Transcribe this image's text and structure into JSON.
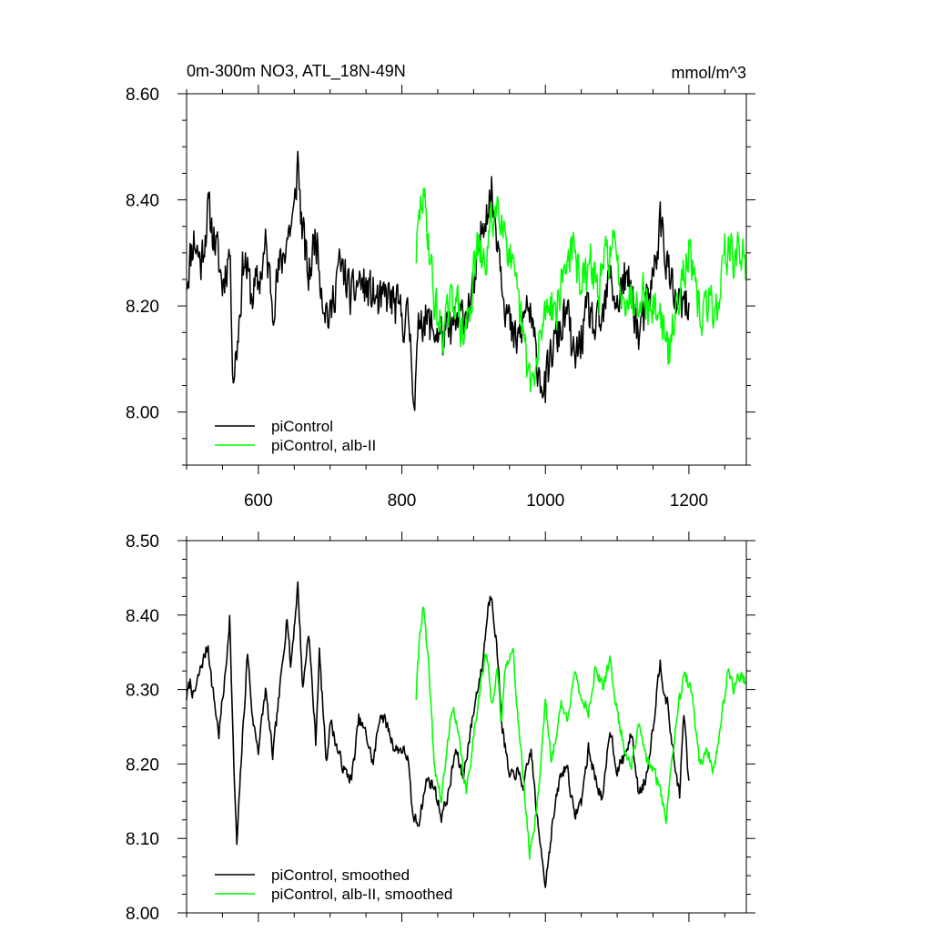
{
  "chart_data": [
    {
      "type": "line",
      "title": "0m-300m NO3, ATL_18N-49N",
      "units": "mmol/m^3",
      "xlim": [
        500,
        1280
      ],
      "ylim": [
        7.9,
        8.6
      ],
      "x_ticks": [
        600,
        800,
        1000,
        1200
      ],
      "x_tick_labels": [
        "600",
        "800",
        "1000",
        "1200"
      ],
      "y_ticks": [
        8.0,
        8.2,
        8.4,
        8.6
      ],
      "y_tick_labels": [
        "8.00",
        "8.20",
        "8.40",
        "8.60"
      ],
      "legend_position": "bottom-left",
      "series": [
        {
          "name": "piControl",
          "color": "#000000",
          "x_start": 500,
          "x_end": 1200,
          "anchors": [
            [
              500,
              8.25
            ],
            [
              510,
              8.33
            ],
            [
              520,
              8.28
            ],
            [
              530,
              8.38
            ],
            [
              540,
              8.32
            ],
            [
              550,
              8.24
            ],
            [
              560,
              8.31
            ],
            [
              565,
              8.07
            ],
            [
              570,
              8.12
            ],
            [
              580,
              8.3
            ],
            [
              590,
              8.22
            ],
            [
              600,
              8.24
            ],
            [
              610,
              8.31
            ],
            [
              620,
              8.21
            ],
            [
              630,
              8.27
            ],
            [
              640,
              8.33
            ],
            [
              650,
              8.37
            ],
            [
              655,
              8.48
            ],
            [
              660,
              8.36
            ],
            [
              670,
              8.25
            ],
            [
              680,
              8.34
            ],
            [
              690,
              8.22
            ],
            [
              700,
              8.17
            ],
            [
              710,
              8.27
            ],
            [
              720,
              8.26
            ],
            [
              730,
              8.21
            ],
            [
              740,
              8.25
            ],
            [
              750,
              8.23
            ],
            [
              760,
              8.22
            ],
            [
              770,
              8.2
            ],
            [
              780,
              8.22
            ],
            [
              790,
              8.2
            ],
            [
              800,
              8.18
            ],
            [
              810,
              8.17
            ],
            [
              818,
              8.02
            ],
            [
              825,
              8.19
            ],
            [
              840,
              8.16
            ],
            [
              860,
              8.14
            ],
            [
              880,
              8.17
            ],
            [
              900,
              8.22
            ],
            [
              915,
              8.38
            ],
            [
              925,
              8.41
            ],
            [
              935,
              8.32
            ],
            [
              945,
              8.2
            ],
            [
              955,
              8.13
            ],
            [
              965,
              8.14
            ],
            [
              975,
              8.21
            ],
            [
              985,
              8.12
            ],
            [
              995,
              8.06
            ],
            [
              1000,
              8.04
            ],
            [
              1010,
              8.12
            ],
            [
              1020,
              8.15
            ],
            [
              1030,
              8.19
            ],
            [
              1040,
              8.09
            ],
            [
              1050,
              8.14
            ],
            [
              1060,
              8.19
            ],
            [
              1070,
              8.15
            ],
            [
              1080,
              8.17
            ],
            [
              1090,
              8.26
            ],
            [
              1100,
              8.2
            ],
            [
              1110,
              8.25
            ],
            [
              1120,
              8.23
            ],
            [
              1130,
              8.14
            ],
            [
              1140,
              8.19
            ],
            [
              1150,
              8.25
            ],
            [
              1160,
              8.36
            ],
            [
              1170,
              8.28
            ],
            [
              1180,
              8.2
            ],
            [
              1190,
              8.2
            ],
            [
              1200,
              8.19
            ]
          ],
          "noise": 0.06,
          "seed": 11
        },
        {
          "name": "piControl, alb-II",
          "color": "#00ff00",
          "x_start": 820,
          "x_end": 1280,
          "anchors": [
            [
              820,
              8.3
            ],
            [
              828,
              8.41
            ],
            [
              835,
              8.36
            ],
            [
              845,
              8.21
            ],
            [
              855,
              8.15
            ],
            [
              865,
              8.18
            ],
            [
              875,
              8.23
            ],
            [
              885,
              8.13
            ],
            [
              895,
              8.2
            ],
            [
              905,
              8.31
            ],
            [
              915,
              8.27
            ],
            [
              925,
              8.36
            ],
            [
              935,
              8.4
            ],
            [
              945,
              8.34
            ],
            [
              955,
              8.25
            ],
            [
              965,
              8.18
            ],
            [
              975,
              8.08
            ],
            [
              985,
              8.05
            ],
            [
              995,
              8.16
            ],
            [
              1005,
              8.22
            ],
            [
              1015,
              8.19
            ],
            [
              1025,
              8.26
            ],
            [
              1035,
              8.31
            ],
            [
              1045,
              8.27
            ],
            [
              1055,
              8.24
            ],
            [
              1065,
              8.28
            ],
            [
              1075,
              8.22
            ],
            [
              1085,
              8.3
            ],
            [
              1095,
              8.31
            ],
            [
              1105,
              8.24
            ],
            [
              1115,
              8.22
            ],
            [
              1125,
              8.21
            ],
            [
              1135,
              8.24
            ],
            [
              1145,
              8.19
            ],
            [
              1155,
              8.2
            ],
            [
              1165,
              8.16
            ],
            [
              1170,
              8.1
            ],
            [
              1180,
              8.17
            ],
            [
              1190,
              8.27
            ],
            [
              1200,
              8.3
            ],
            [
              1210,
              8.21
            ],
            [
              1220,
              8.18
            ],
            [
              1230,
              8.21
            ],
            [
              1240,
              8.19
            ],
            [
              1250,
              8.31
            ],
            [
              1260,
              8.29
            ],
            [
              1270,
              8.3
            ],
            [
              1280,
              8.28
            ]
          ],
          "noise": 0.06,
          "seed": 29
        }
      ]
    },
    {
      "type": "line",
      "title": "",
      "xlim": [
        500,
        1280
      ],
      "ylim": [
        8.0,
        8.5
      ],
      "x_ticks": [
        600,
        800,
        1000,
        1200
      ],
      "y_ticks": [
        8.0,
        8.1,
        8.2,
        8.3,
        8.4,
        8.5
      ],
      "y_tick_labels": [
        "8.00",
        "8.10",
        "8.20",
        "8.30",
        "8.40",
        "8.50"
      ],
      "legend_position": "bottom-left",
      "series": [
        {
          "name": "piControl, smoothed",
          "color": "#000000",
          "x_start": 500,
          "x_end": 1200,
          "anchors": [
            [
              500,
              8.29
            ],
            [
              505,
              8.31
            ],
            [
              510,
              8.29
            ],
            [
              520,
              8.33
            ],
            [
              530,
              8.36
            ],
            [
              535,
              8.31
            ],
            [
              545,
              8.24
            ],
            [
              555,
              8.33
            ],
            [
              560,
              8.4
            ],
            [
              565,
              8.22
            ],
            [
              570,
              8.09
            ],
            [
              577,
              8.22
            ],
            [
              585,
              8.35
            ],
            [
              592,
              8.26
            ],
            [
              600,
              8.22
            ],
            [
              610,
              8.3
            ],
            [
              620,
              8.21
            ],
            [
              630,
              8.3
            ],
            [
              640,
              8.4
            ],
            [
              645,
              8.33
            ],
            [
              655,
              8.44
            ],
            [
              662,
              8.3
            ],
            [
              670,
              8.38
            ],
            [
              680,
              8.23
            ],
            [
              685,
              8.35
            ],
            [
              695,
              8.2
            ],
            [
              700,
              8.26
            ],
            [
              710,
              8.22
            ],
            [
              720,
              8.19
            ],
            [
              730,
              8.18
            ],
            [
              740,
              8.26
            ],
            [
              750,
              8.24
            ],
            [
              760,
              8.2
            ],
            [
              770,
              8.27
            ],
            [
              780,
              8.25
            ],
            [
              790,
              8.22
            ],
            [
              800,
              8.22
            ],
            [
              808,
              8.21
            ],
            [
              815,
              8.13
            ],
            [
              823,
              8.12
            ],
            [
              835,
              8.18
            ],
            [
              845,
              8.17
            ],
            [
              855,
              8.13
            ],
            [
              865,
              8.16
            ],
            [
              875,
              8.22
            ],
            [
              885,
              8.18
            ],
            [
              895,
              8.24
            ],
            [
              905,
              8.3
            ],
            [
              912,
              8.33
            ],
            [
              920,
              8.41
            ],
            [
              925,
              8.43
            ],
            [
              932,
              8.36
            ],
            [
              940,
              8.25
            ],
            [
              950,
              8.18
            ],
            [
              960,
              8.19
            ],
            [
              970,
              8.17
            ],
            [
              980,
              8.22
            ],
            [
              990,
              8.11
            ],
            [
              995,
              8.08
            ],
            [
              1000,
              8.04
            ],
            [
              1010,
              8.12
            ],
            [
              1020,
              8.18
            ],
            [
              1030,
              8.2
            ],
            [
              1040,
              8.13
            ],
            [
              1050,
              8.15
            ],
            [
              1060,
              8.22
            ],
            [
              1070,
              8.18
            ],
            [
              1080,
              8.15
            ],
            [
              1090,
              8.25
            ],
            [
              1100,
              8.19
            ],
            [
              1110,
              8.21
            ],
            [
              1120,
              8.24
            ],
            [
              1130,
              8.16
            ],
            [
              1140,
              8.18
            ],
            [
              1150,
              8.25
            ],
            [
              1160,
              8.34
            ],
            [
              1165,
              8.3
            ],
            [
              1170,
              8.28
            ],
            [
              1180,
              8.2
            ],
            [
              1187,
              8.16
            ],
            [
              1193,
              8.27
            ],
            [
              1200,
              8.17
            ]
          ],
          "noise": 0.012,
          "seed": 7
        },
        {
          "name": "piControl, alb-II, smoothed",
          "color": "#00ff00",
          "x_start": 820,
          "x_end": 1280,
          "anchors": [
            [
              820,
              8.29
            ],
            [
              825,
              8.38
            ],
            [
              830,
              8.41
            ],
            [
              838,
              8.32
            ],
            [
              845,
              8.2
            ],
            [
              855,
              8.15
            ],
            [
              862,
              8.21
            ],
            [
              870,
              8.28
            ],
            [
              880,
              8.23
            ],
            [
              890,
              8.16
            ],
            [
              900,
              8.24
            ],
            [
              910,
              8.31
            ],
            [
              918,
              8.35
            ],
            [
              925,
              8.28
            ],
            [
              933,
              8.33
            ],
            [
              938,
              8.25
            ],
            [
              945,
              8.34
            ],
            [
              955,
              8.35
            ],
            [
              962,
              8.26
            ],
            [
              970,
              8.17
            ],
            [
              978,
              8.08
            ],
            [
              985,
              8.12
            ],
            [
              992,
              8.18
            ],
            [
              1000,
              8.29
            ],
            [
              1008,
              8.2
            ],
            [
              1015,
              8.24
            ],
            [
              1022,
              8.28
            ],
            [
              1030,
              8.26
            ],
            [
              1040,
              8.32
            ],
            [
              1050,
              8.29
            ],
            [
              1060,
              8.27
            ],
            [
              1070,
              8.33
            ],
            [
              1080,
              8.3
            ],
            [
              1090,
              8.34
            ],
            [
              1100,
              8.27
            ],
            [
              1110,
              8.22
            ],
            [
              1120,
              8.2
            ],
            [
              1130,
              8.25
            ],
            [
              1140,
              8.21
            ],
            [
              1150,
              8.19
            ],
            [
              1160,
              8.17
            ],
            [
              1168,
              8.12
            ],
            [
              1175,
              8.2
            ],
            [
              1185,
              8.28
            ],
            [
              1195,
              8.32
            ],
            [
              1205,
              8.29
            ],
            [
              1215,
              8.2
            ],
            [
              1225,
              8.22
            ],
            [
              1235,
              8.19
            ],
            [
              1245,
              8.26
            ],
            [
              1255,
              8.33
            ],
            [
              1262,
              8.3
            ],
            [
              1270,
              8.32
            ],
            [
              1280,
              8.31
            ]
          ],
          "noise": 0.012,
          "seed": 41
        }
      ]
    }
  ]
}
